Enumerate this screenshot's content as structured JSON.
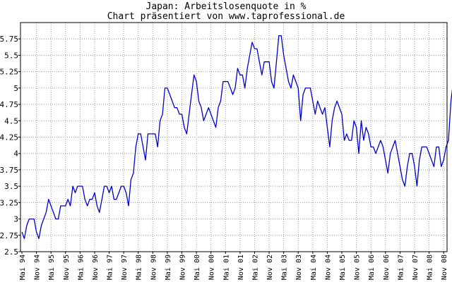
{
  "colors": {
    "line": "#0000cc",
    "grid": "#999999",
    "frame": "#000000",
    "background": "#ffffff"
  },
  "chart_data": {
    "type": "line",
    "title": "Japan: Arbeitslosenquote in %",
    "subtitle": "Chart präsentiert von www.taprofessional.de",
    "xlabel": "",
    "ylabel": "",
    "ylim": [
      2.5,
      6.0
    ],
    "yticks": [
      2.5,
      2.75,
      3,
      3.25,
      3.5,
      3.75,
      4,
      4.25,
      4.5,
      4.75,
      5,
      5.25,
      5.5,
      5.75
    ],
    "ytick_labels": [
      "2.5",
      "2.75",
      "3",
      "3.25",
      "3.5",
      "3.75",
      "4",
      "4.25",
      "4.5",
      "4.75",
      "5",
      "5.25",
      "5.5",
      "5.75"
    ],
    "grid": true,
    "grid_style": "dotted",
    "x_start": "Mai 94",
    "x_ticks": [
      "Mai 94",
      "Nov 94",
      "Mai 95",
      "Nov 95",
      "Mai 96",
      "Nov 96",
      "Mai 97",
      "Nov 97",
      "Mai 98",
      "Nov 98",
      "Mai 99",
      "Nov 99",
      "Mai 00",
      "Nov 00",
      "Mai 01",
      "Nov 01",
      "Mai 02",
      "Nov 02",
      "Mai 03",
      "Nov 03",
      "Mai 04",
      "Nov 04",
      "Mai 05",
      "Nov 05",
      "Mai 06",
      "Nov 06",
      "Mai 07",
      "Nov 07",
      "Mai 08",
      "Nov 08"
    ],
    "series": [
      {
        "values": [
          2.8,
          2.7,
          2.9,
          3.0,
          3.0,
          3.0,
          2.8,
          2.7,
          2.9,
          3.0,
          3.1,
          3.3,
          3.2,
          3.1,
          3.0,
          3.0,
          3.2,
          3.2,
          3.2,
          3.3,
          3.2,
          3.5,
          3.4,
          3.5,
          3.5,
          3.5,
          3.3,
          3.2,
          3.3,
          3.3,
          3.4,
          3.2,
          3.1,
          3.3,
          3.5,
          3.5,
          3.4,
          3.5,
          3.3,
          3.3,
          3.4,
          3.5,
          3.5,
          3.4,
          3.2,
          3.6,
          3.7,
          4.1,
          4.3,
          4.3,
          4.1,
          3.9,
          4.3,
          4.3,
          4.3,
          4.3,
          4.1,
          4.5,
          4.6,
          5.0,
          5.0,
          4.9,
          4.8,
          4.7,
          4.7,
          4.6,
          4.6,
          4.4,
          4.3,
          4.6,
          4.9,
          5.2,
          5.1,
          4.8,
          4.7,
          4.5,
          4.6,
          4.7,
          4.6,
          4.5,
          4.4,
          4.7,
          4.8,
          5.1,
          5.1,
          5.1,
          5.0,
          4.9,
          5.0,
          5.3,
          5.2,
          5.2,
          5.0,
          5.3,
          5.5,
          5.7,
          5.6,
          5.6,
          5.4,
          5.2,
          5.4,
          5.4,
          5.4,
          5.1,
          5.0,
          5.4,
          5.8,
          5.8,
          5.5,
          5.3,
          5.1,
          5.0,
          5.2,
          5.1,
          5.0,
          4.5,
          4.9,
          5.0,
          5.0,
          5.0,
          4.8,
          4.6,
          4.8,
          4.7,
          4.6,
          4.7,
          4.4,
          4.1,
          4.5,
          4.7,
          4.8,
          4.7,
          4.6,
          4.2,
          4.3,
          4.2,
          4.2,
          4.5,
          4.4,
          4.0,
          4.5,
          4.2,
          4.4,
          4.3,
          4.1,
          4.1,
          4.0,
          4.1,
          4.2,
          4.1,
          3.9,
          3.7,
          4.0,
          4.1,
          4.2,
          4.0,
          3.8,
          3.6,
          3.5,
          3.8,
          4.0,
          4.0,
          3.8,
          3.5,
          3.9,
          4.1,
          4.1,
          4.1,
          4.0,
          3.9,
          3.8,
          4.1,
          4.1,
          3.8,
          3.9,
          4.1,
          4.2,
          4.8,
          5.1
        ]
      }
    ]
  }
}
